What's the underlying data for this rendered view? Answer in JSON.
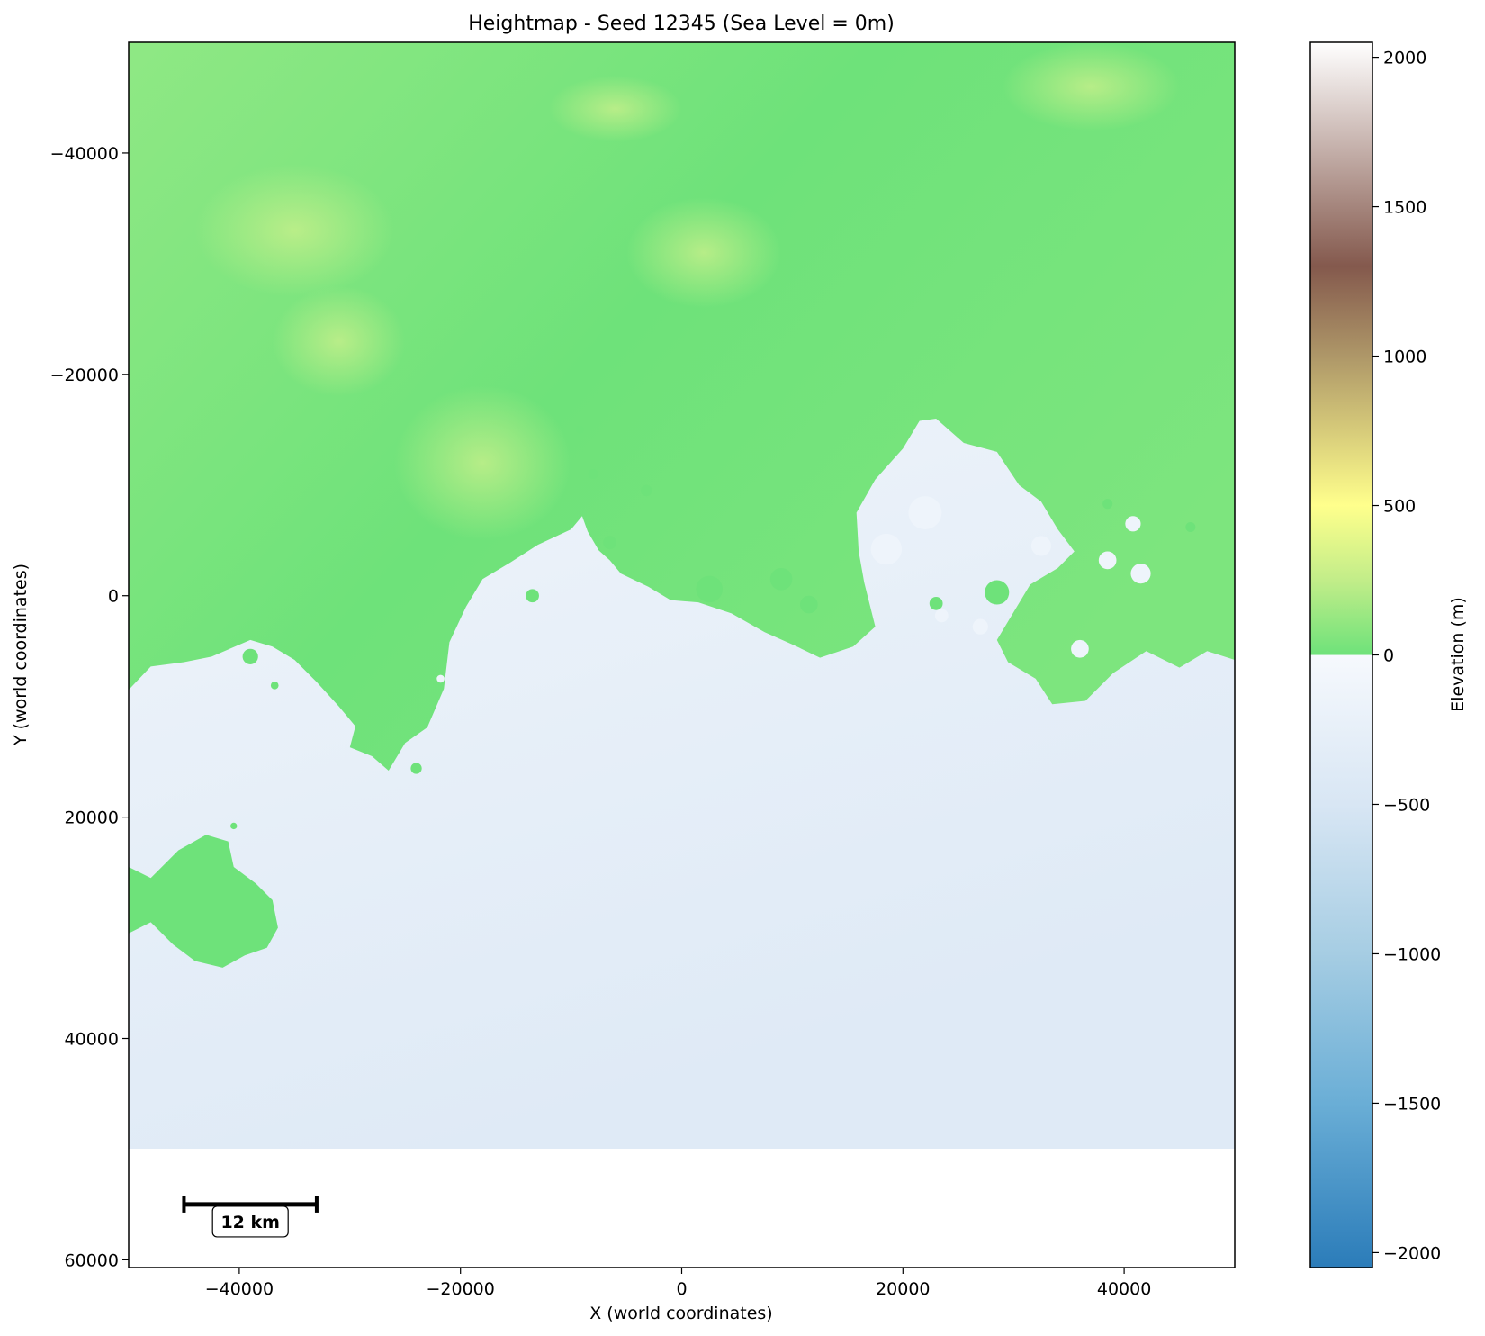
{
  "chart_data": {
    "type": "heatmap",
    "title": "Heightmap - Seed 12345 (Sea Level = 0m)",
    "xlabel": "X (world coordinates)",
    "ylabel": "Y (world coordinates)",
    "xlim": [
      -50000,
      50000
    ],
    "ylim": [
      60700,
      -50000
    ],
    "y_inverted": true,
    "map_extent": {
      "x": [
        -50000,
        50000
      ],
      "y": [
        -50000,
        50000
      ]
    },
    "x_ticks": [
      {
        "value": -40000,
        "label": "−40000"
      },
      {
        "value": -20000,
        "label": "−20000"
      },
      {
        "value": 0,
        "label": "0"
      },
      {
        "value": 20000,
        "label": "20000"
      },
      {
        "value": 40000,
        "label": "40000"
      }
    ],
    "y_ticks": [
      {
        "value": -40000,
        "label": "−40000"
      },
      {
        "value": -20000,
        "label": "−20000"
      },
      {
        "value": 0,
        "label": "0"
      },
      {
        "value": 20000,
        "label": "20000"
      },
      {
        "value": 40000,
        "label": "40000"
      },
      {
        "value": 60000,
        "label": "60000"
      }
    ],
    "grid": false,
    "sea_level": 0,
    "land_color": "#6ee27a",
    "land_highlight_color": "#c3ef8a",
    "sea_color": "#eef4fb",
    "sea_deep_color": "#dfeaf6",
    "colorbar": {
      "label": "Elevation (m)",
      "range": [
        -2050,
        2050
      ],
      "ticks": [
        {
          "value": 2000,
          "label": "2000"
        },
        {
          "value": 1500,
          "label": "1500"
        },
        {
          "value": 1000,
          "label": "1000"
        },
        {
          "value": 500,
          "label": "500"
        },
        {
          "value": 0,
          "label": "0"
        },
        {
          "value": -500,
          "label": "−500"
        },
        {
          "value": -1000,
          "label": "−1000"
        },
        {
          "value": -1500,
          "label": "−1500"
        },
        {
          "value": -2000,
          "label": "−2000"
        }
      ],
      "stops": [
        {
          "value": 2050,
          "color": "#ffffff"
        },
        {
          "value": 1300,
          "color": "#84594d"
        },
        {
          "value": 1000,
          "color": "#ae9768"
        },
        {
          "value": 500,
          "color": "#ffff8c"
        },
        {
          "value": 250,
          "color": "#c2ed89"
        },
        {
          "value": 0,
          "color": "#6ee27a"
        },
        {
          "value": -1,
          "color": "#f6f9fd"
        },
        {
          "value": -500,
          "color": "#d8e6f4"
        },
        {
          "value": -1000,
          "color": "#a6cde3"
        },
        {
          "value": -1500,
          "color": "#6aaed6"
        },
        {
          "value": -2050,
          "color": "#2b7cb9"
        }
      ]
    },
    "scale_bar": {
      "label": "12 km",
      "x_start": -45000,
      "x_end": -33000,
      "y": 55000
    },
    "coastline": [
      [
        -50000,
        8500
      ],
      [
        -48000,
        6400
      ],
      [
        -45000,
        6000
      ],
      [
        -42500,
        5500
      ],
      [
        -39000,
        4000
      ],
      [
        -37000,
        4600
      ],
      [
        -35000,
        5800
      ],
      [
        -33000,
        7800
      ],
      [
        -31000,
        10000
      ],
      [
        -29500,
        11800
      ],
      [
        -30000,
        13700
      ],
      [
        -28000,
        14500
      ],
      [
        -26500,
        15800
      ],
      [
        -25000,
        13300
      ],
      [
        -23000,
        11900
      ],
      [
        -21500,
        8400
      ],
      [
        -21000,
        4200
      ],
      [
        -19500,
        1000
      ],
      [
        -18000,
        -1500
      ],
      [
        -15500,
        -3000
      ],
      [
        -13000,
        -4600
      ],
      [
        -10000,
        -6000
      ],
      [
        -9000,
        -7200
      ],
      [
        -8500,
        -5800
      ],
      [
        -7500,
        -4100
      ],
      [
        -6500,
        -3200
      ],
      [
        -5500,
        -2000
      ],
      [
        -3000,
        -800
      ],
      [
        -1000,
        400
      ],
      [
        1500,
        600
      ],
      [
        4500,
        1600
      ],
      [
        7500,
        3300
      ],
      [
        10000,
        4400
      ],
      [
        12500,
        5600
      ],
      [
        15500,
        4600
      ],
      [
        17500,
        2800
      ],
      [
        17000,
        800
      ],
      [
        16500,
        -1200
      ],
      [
        16000,
        -4000
      ],
      [
        15800,
        -7500
      ],
      [
        17500,
        -10500
      ],
      [
        20000,
        -13300
      ],
      [
        21500,
        -15800
      ],
      [
        23000,
        -16000
      ],
      [
        25500,
        -13800
      ],
      [
        28500,
        -13000
      ],
      [
        30500,
        -10000
      ],
      [
        32500,
        -8500
      ],
      [
        34000,
        -6000
      ],
      [
        35500,
        -4000
      ],
      [
        34000,
        -2500
      ],
      [
        31500,
        -1000
      ],
      [
        30000,
        1500
      ],
      [
        28500,
        4000
      ],
      [
        29500,
        6000
      ],
      [
        32000,
        7500
      ],
      [
        33500,
        9800
      ],
      [
        36500,
        9500
      ],
      [
        39000,
        7000
      ],
      [
        42000,
        5000
      ],
      [
        45000,
        6500
      ],
      [
        47500,
        5000
      ],
      [
        50000,
        5800
      ]
    ],
    "islands": [
      [
        [
          -50000,
          24500
        ],
        [
          -48000,
          25500
        ],
        [
          -45500,
          23000
        ],
        [
          -43000,
          21600
        ],
        [
          -41000,
          22200
        ],
        [
          -40500,
          24500
        ],
        [
          -38500,
          26000
        ],
        [
          -37000,
          27500
        ],
        [
          -36500,
          30000
        ],
        [
          -37500,
          31800
        ],
        [
          -39500,
          32500
        ],
        [
          -41500,
          33600
        ],
        [
          -44000,
          33000
        ],
        [
          -46000,
          31500
        ],
        [
          -48000,
          29500
        ],
        [
          -50000,
          30500
        ]
      ]
    ],
    "sea_spots": [
      [
        18500,
        -4200,
        1400
      ],
      [
        22000,
        -7500,
        1500
      ],
      [
        32500,
        -4500,
        900
      ],
      [
        38500,
        -3200,
        800
      ],
      [
        41500,
        -2000,
        900
      ],
      [
        27000,
        2800,
        700
      ],
      [
        36000,
        4800,
        800
      ],
      [
        23500,
        1800,
        600
      ],
      [
        40800,
        -6500,
        700
      ],
      [
        -21800,
        7500,
        350
      ]
    ],
    "land_spots": [
      [
        -6500,
        -4800,
        600
      ],
      [
        -8000,
        -11000,
        450
      ],
      [
        -3200,
        -9500,
        500
      ],
      [
        2500,
        -600,
        1200
      ],
      [
        9000,
        -1500,
        1000
      ],
      [
        11500,
        800,
        800
      ],
      [
        23000,
        700,
        600
      ],
      [
        -13500,
        0,
        600
      ],
      [
        -39000,
        5500,
        700
      ],
      [
        -36800,
        8100,
        350
      ],
      [
        -24000,
        15600,
        500
      ],
      [
        -40500,
        20800,
        300
      ],
      [
        38500,
        -8300,
        450
      ],
      [
        -9200,
        -15000,
        350
      ],
      [
        28500,
        -300,
        1100
      ],
      [
        46000,
        -6200,
        450
      ]
    ]
  }
}
